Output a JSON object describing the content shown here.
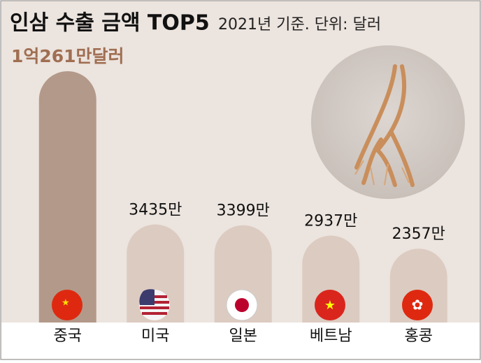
{
  "chart_data": {
    "type": "bar",
    "title": "인삼 수출 금액 TOP5",
    "subtitle": "2021년 기준. 단위: 달러",
    "categories": [
      "중국",
      "미국",
      "일본",
      "베트남",
      "홍콩"
    ],
    "values": [
      10261,
      3435,
      3399,
      2937,
      2357
    ],
    "value_labels": [
      "1억261만달러",
      "3435만",
      "3399만",
      "2937만",
      "2357만"
    ],
    "colors": [
      "#b39989",
      "#dccbc1",
      "#dccbc1",
      "#dccbc1",
      "#dccbc1"
    ],
    "label_colors": [
      "#a06e52",
      "#111111",
      "#111111",
      "#111111",
      "#111111"
    ]
  }
}
